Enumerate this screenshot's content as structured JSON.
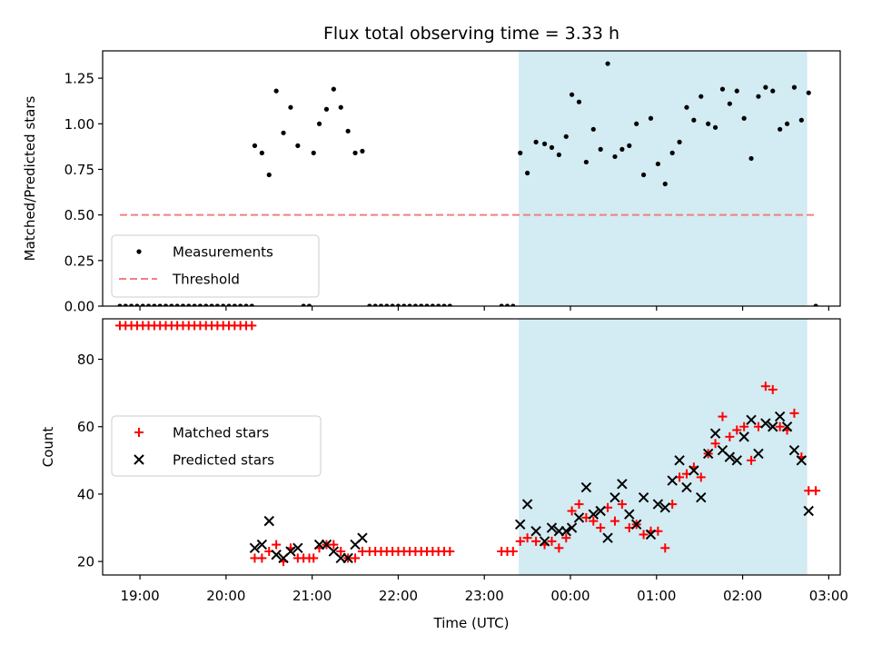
{
  "figure": {
    "title": "Flux total observing time = 3.33 h",
    "xlabel": "Time (UTC)"
  },
  "chart_data": [
    {
      "type": "scatter",
      "ylabel": "Matched/Predicted stars",
      "ylim": [
        0,
        1.4
      ],
      "xlim": [
        "18:34",
        "03:08"
      ],
      "yticks": [
        "0.00",
        "0.25",
        "0.50",
        "0.75",
        "1.00",
        "1.25"
      ],
      "highlight_span": [
        "23:24",
        "02:45"
      ],
      "highlight_color": "#d3ebf2",
      "legend_placement": "lower-left",
      "series": [
        {
          "name": "Measurements",
          "marker": "dot",
          "color": "#000000",
          "points": [
            [
              "18:46",
              0
            ],
            [
              "18:50",
              0
            ],
            [
              "18:54",
              0
            ],
            [
              "18:58",
              0
            ],
            [
              "19:02",
              0
            ],
            [
              "19:06",
              0
            ],
            [
              "19:10",
              0
            ],
            [
              "19:14",
              0
            ],
            [
              "19:18",
              0
            ],
            [
              "19:22",
              0
            ],
            [
              "19:26",
              0
            ],
            [
              "19:30",
              0
            ],
            [
              "19:34",
              0
            ],
            [
              "19:38",
              0
            ],
            [
              "19:42",
              0
            ],
            [
              "19:46",
              0
            ],
            [
              "19:50",
              0
            ],
            [
              "19:54",
              0
            ],
            [
              "19:58",
              0
            ],
            [
              "20:02",
              0
            ],
            [
              "20:06",
              0
            ],
            [
              "20:10",
              0
            ],
            [
              "20:14",
              0
            ],
            [
              "20:18",
              0
            ],
            [
              "20:20",
              0.88
            ],
            [
              "20:25",
              0.84
            ],
            [
              "20:30",
              0.72
            ],
            [
              "20:35",
              1.18
            ],
            [
              "20:40",
              0.95
            ],
            [
              "20:45",
              1.09
            ],
            [
              "20:50",
              0.88
            ],
            [
              "20:54",
              0
            ],
            [
              "20:58",
              0
            ],
            [
              "21:01",
              0.84
            ],
            [
              "21:05",
              1.0
            ],
            [
              "21:10",
              1.08
            ],
            [
              "21:15",
              1.19
            ],
            [
              "21:20",
              1.09
            ],
            [
              "21:25",
              0.96
            ],
            [
              "21:30",
              0.84
            ],
            [
              "21:35",
              0.85
            ],
            [
              "21:40",
              0
            ],
            [
              "21:44",
              0
            ],
            [
              "21:48",
              0
            ],
            [
              "21:52",
              0
            ],
            [
              "21:56",
              0
            ],
            [
              "22:00",
              0
            ],
            [
              "22:04",
              0
            ],
            [
              "22:08",
              0
            ],
            [
              "22:12",
              0
            ],
            [
              "22:16",
              0
            ],
            [
              "22:20",
              0
            ],
            [
              "22:24",
              0
            ],
            [
              "22:28",
              0
            ],
            [
              "22:32",
              0
            ],
            [
              "22:36",
              0
            ],
            [
              "23:12",
              0
            ],
            [
              "23:16",
              0
            ],
            [
              "23:20",
              0
            ],
            [
              "23:25",
              0.84
            ],
            [
              "23:30",
              0.73
            ],
            [
              "23:36",
              0.9
            ],
            [
              "23:42",
              0.89
            ],
            [
              "23:47",
              0.87
            ],
            [
              "23:52",
              0.83
            ],
            [
              "23:57",
              0.93
            ],
            [
              "00:01",
              1.16
            ],
            [
              "00:06",
              1.12
            ],
            [
              "00:11",
              0.79
            ],
            [
              "00:16",
              0.97
            ],
            [
              "00:21",
              0.86
            ],
            [
              "00:26",
              1.33
            ],
            [
              "00:31",
              0.82
            ],
            [
              "00:36",
              0.86
            ],
            [
              "00:41",
              0.88
            ],
            [
              "00:46",
              1.0
            ],
            [
              "00:51",
              0.72
            ],
            [
              "00:56",
              1.03
            ],
            [
              "01:01",
              0.78
            ],
            [
              "01:06",
              0.67
            ],
            [
              "01:11",
              0.84
            ],
            [
              "01:16",
              0.9
            ],
            [
              "01:21",
              1.09
            ],
            [
              "01:26",
              1.02
            ],
            [
              "01:31",
              1.15
            ],
            [
              "01:36",
              1.0
            ],
            [
              "01:41",
              0.98
            ],
            [
              "01:46",
              1.19
            ],
            [
              "01:51",
              1.11
            ],
            [
              "01:56",
              1.18
            ],
            [
              "02:01",
              1.03
            ],
            [
              "02:06",
              0.81
            ],
            [
              "02:11",
              1.15
            ],
            [
              "02:16",
              1.2
            ],
            [
              "02:21",
              1.18
            ],
            [
              "02:26",
              0.97
            ],
            [
              "02:31",
              1.0
            ],
            [
              "02:36",
              1.2
            ],
            [
              "02:41",
              1.02
            ],
            [
              "02:46",
              1.17
            ],
            [
              "02:51",
              0
            ]
          ]
        },
        {
          "name": "Threshold",
          "type": "line",
          "style": "dashed",
          "color": "#f08080",
          "points": [
            [
              "18:46",
              0.5
            ],
            [
              "02:51",
              0.5
            ]
          ]
        }
      ]
    },
    {
      "type": "scatter",
      "ylabel": "Count",
      "ylim": [
        16,
        92
      ],
      "xlim": [
        "18:34",
        "03:08"
      ],
      "yticks": [
        "20",
        "40",
        "60",
        "80"
      ],
      "xticks": [
        "19:00",
        "20:00",
        "21:00",
        "22:00",
        "23:00",
        "00:00",
        "01:00",
        "02:00",
        "03:00"
      ],
      "highlight_span": [
        "23:24",
        "02:45"
      ],
      "highlight_color": "#d3ebf2",
      "legend_placement": "center-left",
      "series": [
        {
          "name": "Matched stars",
          "marker": "plus",
          "color": "#ff0000",
          "points": [
            [
              "18:46",
              90
            ],
            [
              "18:50",
              90
            ],
            [
              "18:54",
              90
            ],
            [
              "18:58",
              90
            ],
            [
              "19:02",
              90
            ],
            [
              "19:06",
              90
            ],
            [
              "19:10",
              90
            ],
            [
              "19:14",
              90
            ],
            [
              "19:18",
              90
            ],
            [
              "19:22",
              90
            ],
            [
              "19:26",
              90
            ],
            [
              "19:30",
              90
            ],
            [
              "19:34",
              90
            ],
            [
              "19:38",
              90
            ],
            [
              "19:42",
              90
            ],
            [
              "19:46",
              90
            ],
            [
              "19:50",
              90
            ],
            [
              "19:54",
              90
            ],
            [
              "19:58",
              90
            ],
            [
              "20:02",
              90
            ],
            [
              "20:06",
              90
            ],
            [
              "20:10",
              90
            ],
            [
              "20:14",
              90
            ],
            [
              "20:18",
              90
            ],
            [
              "20:20",
              21
            ],
            [
              "20:25",
              21
            ],
            [
              "20:30",
              23
            ],
            [
              "20:35",
              25
            ],
            [
              "20:40",
              20
            ],
            [
              "20:45",
              24
            ],
            [
              "20:50",
              21
            ],
            [
              "20:54",
              21
            ],
            [
              "20:58",
              21
            ],
            [
              "21:01",
              21
            ],
            [
              "21:05",
              24
            ],
            [
              "21:10",
              25
            ],
            [
              "21:15",
              25
            ],
            [
              "21:20",
              23
            ],
            [
              "21:25",
              21
            ],
            [
              "21:30",
              21
            ],
            [
              "21:35",
              23
            ],
            [
              "21:40",
              23
            ],
            [
              "21:44",
              23
            ],
            [
              "21:48",
              23
            ],
            [
              "21:52",
              23
            ],
            [
              "21:56",
              23
            ],
            [
              "22:00",
              23
            ],
            [
              "22:04",
              23
            ],
            [
              "22:08",
              23
            ],
            [
              "22:12",
              23
            ],
            [
              "22:16",
              23
            ],
            [
              "22:20",
              23
            ],
            [
              "22:24",
              23
            ],
            [
              "22:28",
              23
            ],
            [
              "22:32",
              23
            ],
            [
              "22:36",
              23
            ],
            [
              "23:12",
              23
            ],
            [
              "23:16",
              23
            ],
            [
              "23:20",
              23
            ],
            [
              "23:25",
              26
            ],
            [
              "23:30",
              27
            ],
            [
              "23:36",
              26
            ],
            [
              "23:42",
              25
            ],
            [
              "23:47",
              26
            ],
            [
              "23:52",
              24
            ],
            [
              "23:57",
              27
            ],
            [
              "00:01",
              35
            ],
            [
              "00:06",
              37
            ],
            [
              "00:11",
              33
            ],
            [
              "00:16",
              32
            ],
            [
              "00:21",
              30
            ],
            [
              "00:26",
              36
            ],
            [
              "00:31",
              32
            ],
            [
              "00:36",
              37
            ],
            [
              "00:41",
              30
            ],
            [
              "00:46",
              31
            ],
            [
              "00:51",
              28
            ],
            [
              "00:56",
              29
            ],
            [
              "01:01",
              29
            ],
            [
              "01:06",
              24
            ],
            [
              "01:11",
              37
            ],
            [
              "01:16",
              45
            ],
            [
              "01:21",
              46
            ],
            [
              "01:26",
              48
            ],
            [
              "01:31",
              45
            ],
            [
              "01:36",
              52
            ],
            [
              "01:41",
              55
            ],
            [
              "01:46",
              63
            ],
            [
              "01:51",
              57
            ],
            [
              "01:56",
              59
            ],
            [
              "02:01",
              60
            ],
            [
              "02:06",
              50
            ],
            [
              "02:11",
              60
            ],
            [
              "02:16",
              72
            ],
            [
              "02:21",
              71
            ],
            [
              "02:26",
              60
            ],
            [
              "02:31",
              59
            ],
            [
              "02:36",
              64
            ],
            [
              "02:41",
              51
            ],
            [
              "02:46",
              41
            ],
            [
              "02:51",
              41
            ]
          ]
        },
        {
          "name": "Predicted stars",
          "marker": "cross",
          "color": "#000000",
          "points": [
            [
              "20:20",
              24
            ],
            [
              "20:25",
              25
            ],
            [
              "20:30",
              32
            ],
            [
              "20:35",
              22
            ],
            [
              "20:40",
              21
            ],
            [
              "20:45",
              23
            ],
            [
              "20:50",
              24
            ],
            [
              "21:05",
              25
            ],
            [
              "21:10",
              25
            ],
            [
              "21:15",
              23
            ],
            [
              "21:20",
              21
            ],
            [
              "21:25",
              21
            ],
            [
              "21:30",
              25
            ],
            [
              "21:35",
              27
            ],
            [
              "23:25",
              31
            ],
            [
              "23:30",
              37
            ],
            [
              "23:36",
              29
            ],
            [
              "23:42",
              26
            ],
            [
              "23:47",
              30
            ],
            [
              "23:52",
              29
            ],
            [
              "23:57",
              29
            ],
            [
              "00:01",
              30
            ],
            [
              "00:06",
              33
            ],
            [
              "00:11",
              42
            ],
            [
              "00:16",
              34
            ],
            [
              "00:21",
              35
            ],
            [
              "00:26",
              27
            ],
            [
              "00:31",
              39
            ],
            [
              "00:36",
              43
            ],
            [
              "00:41",
              34
            ],
            [
              "00:46",
              31
            ],
            [
              "00:51",
              39
            ],
            [
              "00:56",
              28
            ],
            [
              "01:01",
              37
            ],
            [
              "01:06",
              36
            ],
            [
              "01:11",
              44
            ],
            [
              "01:16",
              50
            ],
            [
              "01:21",
              42
            ],
            [
              "01:26",
              47
            ],
            [
              "01:31",
              39
            ],
            [
              "01:36",
              52
            ],
            [
              "01:41",
              58
            ],
            [
              "01:46",
              53
            ],
            [
              "01:51",
              51
            ],
            [
              "01:56",
              50
            ],
            [
              "02:01",
              57
            ],
            [
              "02:06",
              62
            ],
            [
              "02:11",
              52
            ],
            [
              "02:16",
              61
            ],
            [
              "02:21",
              60
            ],
            [
              "02:26",
              63
            ],
            [
              "02:31",
              60
            ],
            [
              "02:36",
              53
            ],
            [
              "02:41",
              50
            ],
            [
              "02:46",
              35
            ]
          ]
        }
      ]
    }
  ]
}
